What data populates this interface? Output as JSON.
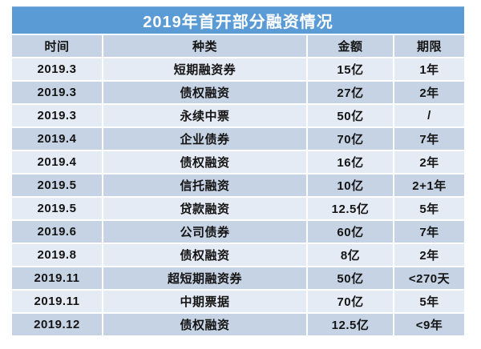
{
  "title": "2019年首开部分融资情况",
  "chart_data": {
    "type": "table",
    "title": "2019年首开部分融资情况",
    "columns": [
      "时间",
      "种类",
      "金额",
      "期限"
    ],
    "rows": [
      [
        "2019.3",
        "短期融资券",
        "15亿",
        "1年"
      ],
      [
        "2019.3",
        "债权融资",
        "27亿",
        "2年"
      ],
      [
        "2019.3",
        "永续中票",
        "50亿",
        "/"
      ],
      [
        "2019.4",
        "企业债券",
        "70亿",
        "7年"
      ],
      [
        "2019.4",
        "债权融资",
        "16亿",
        "2年"
      ],
      [
        "2019.5",
        "信托融资",
        "10亿",
        "2+1年"
      ],
      [
        "2019.5",
        "贷款融资",
        "12.5亿",
        "5年"
      ],
      [
        "2019.6",
        "公司债券",
        "60亿",
        "7年"
      ],
      [
        "2019.8",
        "债权融资",
        "8亿",
        "2年"
      ],
      [
        "2019.11",
        "超短期融资券",
        "50亿",
        "<270天"
      ],
      [
        "2019.11",
        "中期票据",
        "70亿",
        "5年"
      ],
      [
        "2019.12",
        "债权融资",
        "12.5亿",
        "<9年"
      ]
    ],
    "layout": {
      "banded_rows": true,
      "header_color": "#5b9bd5",
      "band_dark_color": "#c6d3e4",
      "band_light_color": "#e5ebf4"
    }
  }
}
